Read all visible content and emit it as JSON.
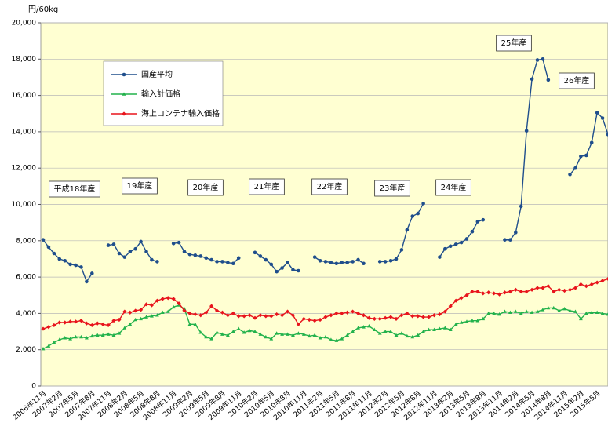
{
  "chart_data": {
    "type": "line",
    "y_label": "円/60kg",
    "categories": [
      "2006年11月",
      null,
      null,
      "2007年2月",
      null,
      null,
      "2007年5月",
      null,
      null,
      "2007年8月",
      null,
      null,
      "2007年11月",
      null,
      null,
      "2008年2月",
      null,
      null,
      "2008年5月",
      null,
      null,
      "2008年8月",
      null,
      null,
      "2008年11月",
      null,
      null,
      "2009年2月",
      null,
      null,
      "2009年5月",
      null,
      null,
      "2009年8月",
      null,
      null,
      "2009年11月",
      null,
      null,
      "2010年2月",
      null,
      null,
      "2010年5月",
      null,
      null,
      "2010年8月",
      null,
      null,
      "2010年11月",
      null,
      null,
      "2011年2月",
      null,
      null,
      "2011年5月",
      null,
      null,
      "2011年8月",
      null,
      null,
      "2011年11月",
      null,
      null,
      "2012年2月",
      null,
      null,
      "2012年5月",
      null,
      null,
      "2012年8月",
      null,
      null,
      "2012年11月",
      null,
      null,
      "2013年2月",
      null,
      null,
      "2013年5月",
      null,
      null,
      "2013年8月",
      null,
      null,
      "2013年11月",
      null,
      null,
      "2014年2月",
      null,
      null,
      "2014年5月",
      null,
      null,
      "2014年8月",
      null,
      null,
      "2014年11月",
      null,
      null,
      "2015年2月",
      null,
      null,
      "2015年5月",
      null,
      null
    ],
    "series": [
      {
        "name": "国産平均",
        "color": "#1f4e8c",
        "marker": "circle",
        "values": [
          8050,
          7650,
          7300,
          7000,
          6900,
          6700,
          6650,
          6550,
          5750,
          6200,
          null,
          null,
          7750,
          7800,
          7300,
          7100,
          7400,
          7550,
          7950,
          7400,
          6950,
          6850,
          null,
          null,
          7850,
          7900,
          7400,
          7250,
          7200,
          7150,
          7050,
          6950,
          6850,
          6850,
          6800,
          6750,
          7050,
          null,
          null,
          7350,
          7150,
          6950,
          6700,
          6300,
          6500,
          6800,
          6400,
          6350,
          null,
          null,
          7100,
          6900,
          6850,
          6800,
          6750,
          6800,
          6800,
          6850,
          6950,
          6750,
          null,
          null,
          6850,
          6850,
          6900,
          7000,
          7500,
          8600,
          9350,
          9500,
          10050,
          null,
          null,
          7100,
          7550,
          7700,
          7800,
          7900,
          8100,
          8500,
          9050,
          9150,
          null,
          null,
          null,
          8050,
          8050,
          8450,
          9900,
          14050,
          16900,
          17950,
          18000,
          16850,
          null,
          null,
          null,
          11650,
          12000,
          12650,
          12700,
          13400,
          15050,
          14750,
          13850
        ]
      },
      {
        "name": "輸入計価格",
        "color": "#22b24c",
        "marker": "triangle",
        "values": [
          2050,
          2200,
          2400,
          2550,
          2650,
          2600,
          2700,
          2700,
          2650,
          2750,
          2800,
          2800,
          2850,
          2800,
          2900,
          3200,
          3400,
          3650,
          3700,
          3800,
          3850,
          3900,
          4050,
          4100,
          4350,
          4450,
          4250,
          3400,
          3400,
          2950,
          2700,
          2600,
          2950,
          2850,
          2800,
          3000,
          3150,
          2950,
          3050,
          3000,
          2850,
          2700,
          2600,
          2900,
          2850,
          2850,
          2800,
          2900,
          2850,
          2750,
          2800,
          2650,
          2700,
          2550,
          2500,
          2600,
          2800,
          3000,
          3200,
          3250,
          3300,
          3100,
          2900,
          3000,
          3000,
          2800,
          2900,
          2750,
          2700,
          2800,
          3000,
          3100,
          3100,
          3150,
          3200,
          3100,
          3400,
          3500,
          3550,
          3600,
          3600,
          3700,
          4000,
          4000,
          3950,
          4100,
          4050,
          4100,
          4000,
          4100,
          4050,
          4100,
          4200,
          4300,
          4300,
          4150,
          4250,
          4150,
          4100,
          3700,
          4000,
          4050,
          4050,
          4000,
          3950
        ]
      },
      {
        "name": "海上コンテナ輸入価格",
        "color": "#e8141c",
        "marker": "diamond",
        "values": [
          3150,
          3250,
          3350,
          3500,
          3500,
          3550,
          3550,
          3600,
          3450,
          3350,
          3450,
          3400,
          3350,
          3600,
          3650,
          4100,
          4050,
          4150,
          4200,
          4500,
          4450,
          4700,
          4800,
          4850,
          4800,
          4550,
          4150,
          4000,
          3950,
          3900,
          4050,
          4400,
          4150,
          4050,
          3900,
          4000,
          3850,
          3850,
          3900,
          3750,
          3900,
          3850,
          3850,
          3950,
          3900,
          4100,
          3900,
          3400,
          3700,
          3650,
          3600,
          3650,
          3800,
          3900,
          4000,
          4000,
          4050,
          4100,
          4000,
          3900,
          3750,
          3700,
          3700,
          3750,
          3800,
          3700,
          3900,
          4000,
          3850,
          3850,
          3800,
          3800,
          3900,
          3950,
          4100,
          4400,
          4700,
          4850,
          5000,
          5200,
          5200,
          5100,
          5150,
          5100,
          5050,
          5150,
          5200,
          5300,
          5200,
          5200,
          5300,
          5400,
          5400,
          5500,
          5200,
          5300,
          5250,
          5300,
          5400,
          5600,
          5500,
          5600,
          5700,
          5800,
          5900
        ]
      }
    ],
    "ylim": [
      0,
      20000
    ],
    "yticks": [
      {
        "value": 0,
        "label": "0"
      },
      {
        "value": 2000,
        "label": "2,000"
      },
      {
        "value": 4000,
        "label": "4,000"
      },
      {
        "value": 6000,
        "label": "6,000"
      },
      {
        "value": 8000,
        "label": "8,000"
      },
      {
        "value": 10000,
        "label": "10,000"
      },
      {
        "value": 12000,
        "label": "12,000"
      },
      {
        "value": 14000,
        "label": "14,000"
      },
      {
        "value": 16000,
        "label": "16,000"
      },
      {
        "value": 18000,
        "label": "18,000"
      },
      {
        "value": 20000,
        "label": "20,000"
      }
    ],
    "grid": true,
    "legend": "upper left",
    "annotations": [
      "平成18年産",
      "19年産",
      "20年産",
      "21年産",
      "22年産",
      "23年産",
      "24年産",
      "25年産",
      "26年産"
    ]
  }
}
